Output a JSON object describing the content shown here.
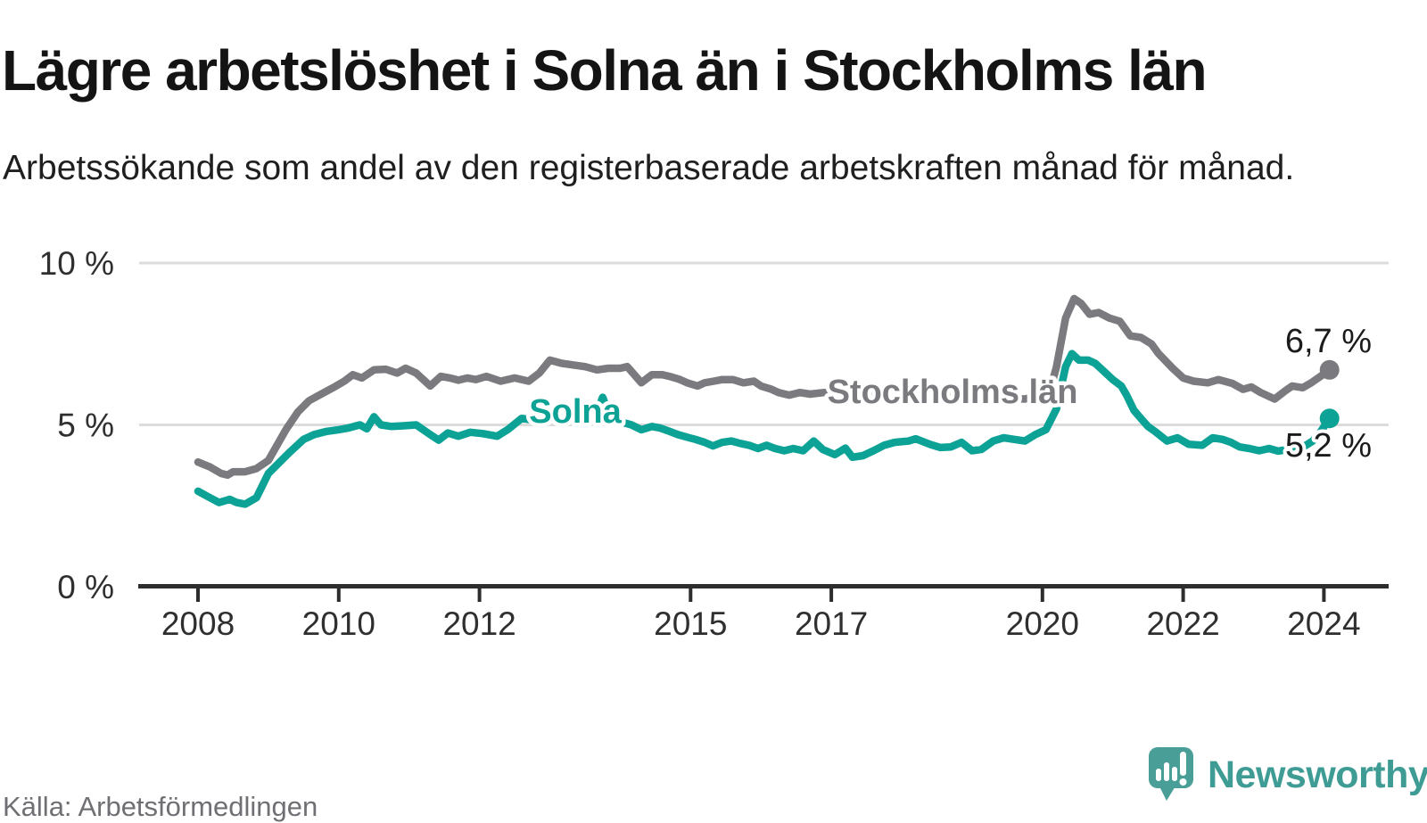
{
  "title": "Lägre arbetslöshet i Solna än i Stockholms län",
  "subtitle": "Arbetssökande som andel av den registerbaserade arbetskraften månad för månad.",
  "source": "Källa: Arbetsförmedlingen",
  "brand": {
    "name": "Newsworthy",
    "text_color": "#3F9C95",
    "mark_color": "#4A9E98"
  },
  "chart_data": {
    "type": "line",
    "unit": "%",
    "title": "Lägre arbetslöshet i Solna än i Stockholms län",
    "xlabel": "",
    "ylabel": "",
    "grid": "horizontal, at 5% and 10%",
    "legend_position": "labels drawn on lines",
    "x_axis": {
      "ticks": [
        2008,
        2010,
        2012,
        2015,
        2017,
        2020,
        2022,
        2024
      ],
      "range_years": [
        2008,
        2024.2
      ]
    },
    "y_axis": {
      "ticks": [
        0,
        5,
        10
      ],
      "tick_labels": [
        "0 %",
        "5 %",
        "10 %"
      ],
      "gridlines": [
        5,
        10
      ],
      "range": [
        0,
        10.2
      ]
    },
    "series": [
      {
        "name": "Solna",
        "color": "#0CA295",
        "end_value": 5.2,
        "end_label": "5,2 %",
        "points": [
          [
            2008.0,
            2.95
          ],
          [
            2008.17,
            2.75
          ],
          [
            2008.3,
            2.6
          ],
          [
            2008.45,
            2.7
          ],
          [
            2008.55,
            2.6
          ],
          [
            2008.67,
            2.55
          ],
          [
            2008.83,
            2.75
          ],
          [
            2009.0,
            3.5
          ],
          [
            2009.3,
            4.15
          ],
          [
            2009.5,
            4.55
          ],
          [
            2009.65,
            4.7
          ],
          [
            2009.83,
            4.8
          ],
          [
            2010.0,
            4.85
          ],
          [
            2010.13,
            4.9
          ],
          [
            2010.3,
            5.0
          ],
          [
            2010.4,
            4.88
          ],
          [
            2010.5,
            5.25
          ],
          [
            2010.6,
            5.0
          ],
          [
            2010.75,
            4.95
          ],
          [
            2010.9,
            4.97
          ],
          [
            2011.1,
            5.0
          ],
          [
            2011.3,
            4.7
          ],
          [
            2011.42,
            4.53
          ],
          [
            2011.55,
            4.75
          ],
          [
            2011.7,
            4.65
          ],
          [
            2011.87,
            4.77
          ],
          [
            2012.05,
            4.73
          ],
          [
            2012.25,
            4.65
          ],
          [
            2012.4,
            4.85
          ],
          [
            2012.6,
            5.2
          ],
          [
            2012.75,
            5.15
          ],
          [
            2012.9,
            5.3
          ],
          [
            2013.1,
            5.25
          ],
          [
            2013.3,
            5.15
          ],
          [
            2013.5,
            5.25
          ],
          [
            2013.67,
            5.4
          ],
          [
            2013.75,
            5.85
          ],
          [
            2013.85,
            5.3
          ],
          [
            2014.0,
            5.1
          ],
          [
            2014.16,
            5.0
          ],
          [
            2014.3,
            4.85
          ],
          [
            2014.45,
            4.95
          ],
          [
            2014.57,
            4.9
          ],
          [
            2014.7,
            4.8
          ],
          [
            2014.82,
            4.7
          ],
          [
            2014.95,
            4.62
          ],
          [
            2015.07,
            4.55
          ],
          [
            2015.2,
            4.46
          ],
          [
            2015.32,
            4.35
          ],
          [
            2015.45,
            4.46
          ],
          [
            2015.58,
            4.5
          ],
          [
            2015.7,
            4.43
          ],
          [
            2015.83,
            4.37
          ],
          [
            2015.96,
            4.27
          ],
          [
            2016.08,
            4.37
          ],
          [
            2016.2,
            4.27
          ],
          [
            2016.33,
            4.2
          ],
          [
            2016.46,
            4.27
          ],
          [
            2016.6,
            4.2
          ],
          [
            2016.75,
            4.5
          ],
          [
            2016.88,
            4.24
          ],
          [
            2017.05,
            4.08
          ],
          [
            2017.2,
            4.28
          ],
          [
            2017.3,
            4.0
          ],
          [
            2017.45,
            4.05
          ],
          [
            2017.6,
            4.2
          ],
          [
            2017.75,
            4.37
          ],
          [
            2017.9,
            4.46
          ],
          [
            2018.1,
            4.5
          ],
          [
            2018.2,
            4.57
          ],
          [
            2018.4,
            4.4
          ],
          [
            2018.55,
            4.3
          ],
          [
            2018.7,
            4.32
          ],
          [
            2018.85,
            4.46
          ],
          [
            2019.0,
            4.2
          ],
          [
            2019.13,
            4.24
          ],
          [
            2019.3,
            4.5
          ],
          [
            2019.45,
            4.6
          ],
          [
            2019.6,
            4.55
          ],
          [
            2019.75,
            4.5
          ],
          [
            2019.9,
            4.7
          ],
          [
            2020.05,
            4.85
          ],
          [
            2020.2,
            5.5
          ],
          [
            2020.33,
            6.8
          ],
          [
            2020.42,
            7.2
          ],
          [
            2020.52,
            7.0
          ],
          [
            2020.65,
            7.0
          ],
          [
            2020.75,
            6.9
          ],
          [
            2020.85,
            6.7
          ],
          [
            2021.0,
            6.4
          ],
          [
            2021.12,
            6.2
          ],
          [
            2021.2,
            5.9
          ],
          [
            2021.3,
            5.45
          ],
          [
            2021.42,
            5.15
          ],
          [
            2021.5,
            4.95
          ],
          [
            2021.6,
            4.8
          ],
          [
            2021.77,
            4.5
          ],
          [
            2021.92,
            4.6
          ],
          [
            2022.08,
            4.4
          ],
          [
            2022.27,
            4.37
          ],
          [
            2022.42,
            4.6
          ],
          [
            2022.56,
            4.55
          ],
          [
            2022.68,
            4.46
          ],
          [
            2022.8,
            4.32
          ],
          [
            2022.94,
            4.27
          ],
          [
            2023.08,
            4.2
          ],
          [
            2023.22,
            4.27
          ],
          [
            2023.35,
            4.19
          ],
          [
            2023.48,
            4.24
          ],
          [
            2023.6,
            4.37
          ],
          [
            2023.73,
            4.35
          ],
          [
            2023.84,
            4.5
          ],
          [
            2023.92,
            4.68
          ],
          [
            2024.08,
            5.2
          ]
        ]
      },
      {
        "name": "Stockholms län",
        "color": "#7B7B7F",
        "end_value": 6.7,
        "end_label": "6,7 %",
        "points": [
          [
            2008.0,
            3.85
          ],
          [
            2008.17,
            3.7
          ],
          [
            2008.33,
            3.5
          ],
          [
            2008.42,
            3.45
          ],
          [
            2008.5,
            3.55
          ],
          [
            2008.67,
            3.55
          ],
          [
            2008.83,
            3.65
          ],
          [
            2009.0,
            3.9
          ],
          [
            2009.25,
            4.85
          ],
          [
            2009.42,
            5.4
          ],
          [
            2009.58,
            5.75
          ],
          [
            2009.75,
            5.95
          ],
          [
            2009.92,
            6.15
          ],
          [
            2010.08,
            6.35
          ],
          [
            2010.2,
            6.55
          ],
          [
            2010.33,
            6.45
          ],
          [
            2010.5,
            6.7
          ],
          [
            2010.67,
            6.72
          ],
          [
            2010.83,
            6.6
          ],
          [
            2010.95,
            6.75
          ],
          [
            2011.1,
            6.6
          ],
          [
            2011.3,
            6.2
          ],
          [
            2011.45,
            6.5
          ],
          [
            2011.58,
            6.45
          ],
          [
            2011.7,
            6.38
          ],
          [
            2011.83,
            6.45
          ],
          [
            2011.95,
            6.4
          ],
          [
            2012.1,
            6.5
          ],
          [
            2012.3,
            6.35
          ],
          [
            2012.5,
            6.45
          ],
          [
            2012.7,
            6.35
          ],
          [
            2012.85,
            6.6
          ],
          [
            2013.0,
            7.0
          ],
          [
            2013.17,
            6.9
          ],
          [
            2013.33,
            6.85
          ],
          [
            2013.5,
            6.8
          ],
          [
            2013.67,
            6.7
          ],
          [
            2013.83,
            6.75
          ],
          [
            2014.0,
            6.75
          ],
          [
            2014.1,
            6.8
          ],
          [
            2014.2,
            6.55
          ],
          [
            2014.3,
            6.3
          ],
          [
            2014.45,
            6.55
          ],
          [
            2014.6,
            6.55
          ],
          [
            2014.7,
            6.5
          ],
          [
            2014.85,
            6.4
          ],
          [
            2014.95,
            6.3
          ],
          [
            2015.1,
            6.2
          ],
          [
            2015.2,
            6.3
          ],
          [
            2015.33,
            6.35
          ],
          [
            2015.45,
            6.4
          ],
          [
            2015.6,
            6.4
          ],
          [
            2015.75,
            6.3
          ],
          [
            2015.9,
            6.35
          ],
          [
            2016.0,
            6.2
          ],
          [
            2016.15,
            6.1
          ],
          [
            2016.25,
            6.0
          ],
          [
            2016.4,
            5.92
          ],
          [
            2016.55,
            6.0
          ],
          [
            2016.7,
            5.95
          ],
          [
            2016.9,
            6.0
          ],
          [
            2017.1,
            5.95
          ],
          [
            2017.3,
            5.9
          ],
          [
            2017.5,
            5.95
          ],
          [
            2017.7,
            6.0
          ],
          [
            2017.9,
            5.95
          ],
          [
            2018.1,
            6.0
          ],
          [
            2018.3,
            5.95
          ],
          [
            2018.5,
            5.9
          ],
          [
            2018.7,
            5.95
          ],
          [
            2018.9,
            5.95
          ],
          [
            2019.1,
            5.9
          ],
          [
            2019.3,
            5.85
          ],
          [
            2019.5,
            5.82
          ],
          [
            2019.75,
            5.8
          ],
          [
            2019.95,
            5.9
          ],
          [
            2020.1,
            6.0
          ],
          [
            2020.2,
            6.8
          ],
          [
            2020.33,
            8.3
          ],
          [
            2020.45,
            8.9
          ],
          [
            2020.55,
            8.75
          ],
          [
            2020.67,
            8.42
          ],
          [
            2020.8,
            8.47
          ],
          [
            2020.95,
            8.3
          ],
          [
            2021.1,
            8.2
          ],
          [
            2021.25,
            7.75
          ],
          [
            2021.4,
            7.7
          ],
          [
            2021.55,
            7.5
          ],
          [
            2021.65,
            7.2
          ],
          [
            2021.85,
            6.75
          ],
          [
            2022.0,
            6.45
          ],
          [
            2022.15,
            6.35
          ],
          [
            2022.35,
            6.3
          ],
          [
            2022.5,
            6.4
          ],
          [
            2022.7,
            6.28
          ],
          [
            2022.85,
            6.1
          ],
          [
            2022.97,
            6.17
          ],
          [
            2023.1,
            6.0
          ],
          [
            2023.3,
            5.8
          ],
          [
            2023.45,
            6.05
          ],
          [
            2023.55,
            6.2
          ],
          [
            2023.7,
            6.15
          ],
          [
            2023.82,
            6.3
          ],
          [
            2023.95,
            6.5
          ],
          [
            2024.08,
            6.7
          ]
        ]
      }
    ]
  }
}
